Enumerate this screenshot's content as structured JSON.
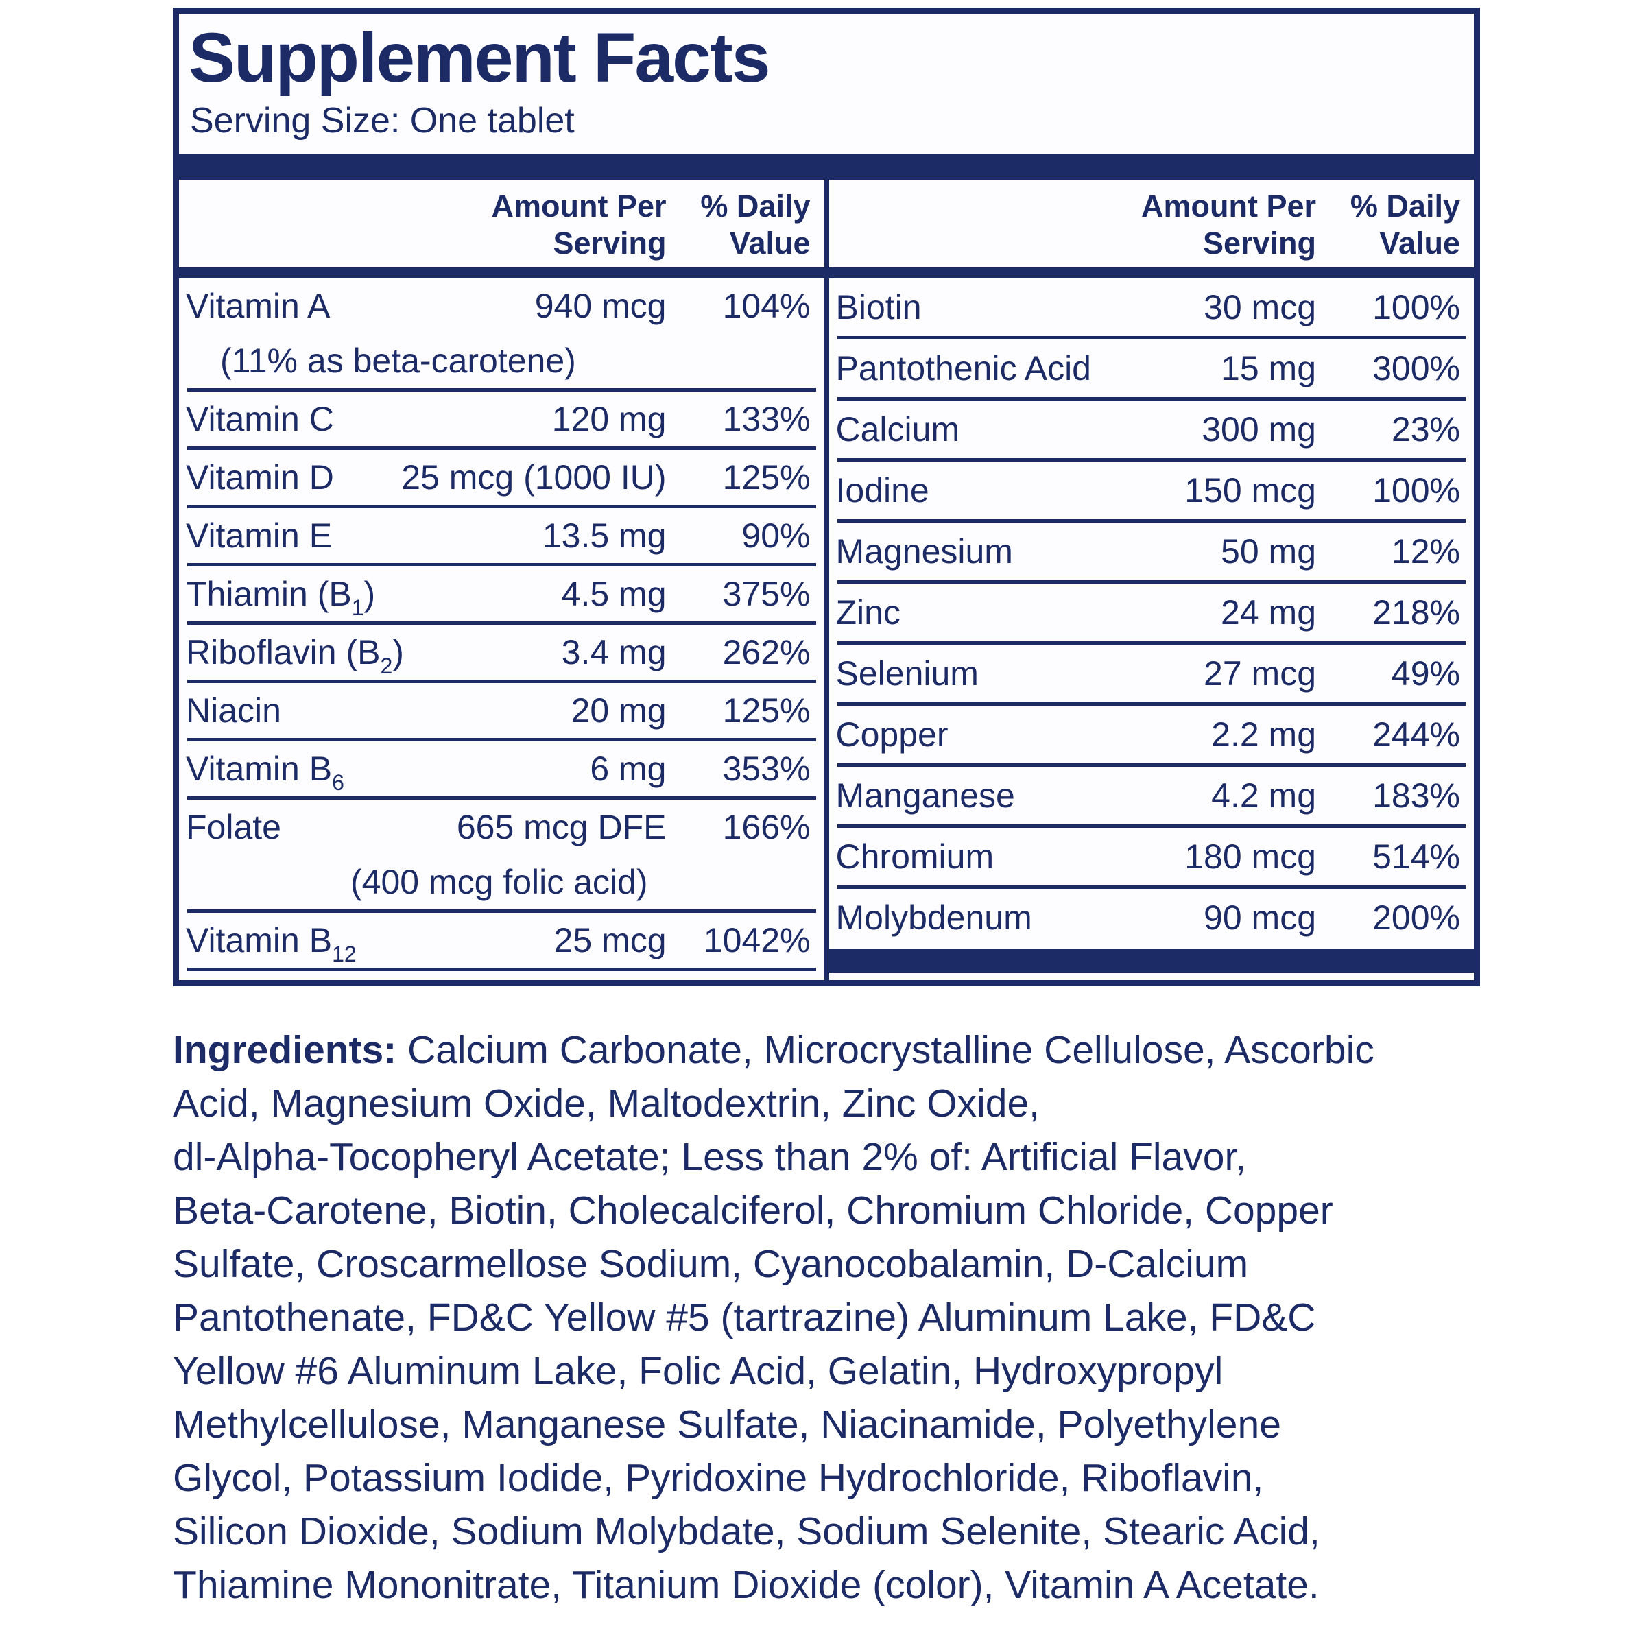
{
  "colors": {
    "navy": "#1c2a66",
    "panel_bg": "#fdfdff",
    "page_bg": "#ffffff"
  },
  "label": {
    "title": "Supplement Facts",
    "serving_size": "Serving Size: One tablet"
  },
  "table": {
    "header": {
      "amount_line1": "Amount Per",
      "amount_line2": "Serving",
      "dv_line1": "% Daily",
      "dv_line2": "Value"
    },
    "left_rows": [
      {
        "name": "Vitamin A",
        "amount": "940 mcg",
        "dv": "104%",
        "note": "(11% as beta-carotene)"
      },
      {
        "name": "Vitamin C",
        "amount": "120 mg",
        "dv": "133%"
      },
      {
        "name": "Vitamin D",
        "amount": "25 mcg (1000 IU)",
        "dv": "125%"
      },
      {
        "name": "Vitamin E",
        "amount": "13.5 mg",
        "dv": "90%"
      },
      {
        "name": "Thiamin (B",
        "sub": "1",
        "name_post": ")",
        "amount": "4.5 mg",
        "dv": "375%"
      },
      {
        "name": "Riboflavin (B",
        "sub": "2",
        "name_post": ")",
        "amount": "3.4 mg",
        "dv": "262%"
      },
      {
        "name": "Niacin",
        "amount": "20 mg",
        "dv": "125%"
      },
      {
        "name": "Vitamin B",
        "sub": "6",
        "name_post": "",
        "amount": "6 mg",
        "dv": "353%"
      },
      {
        "name": "Folate",
        "amount": "665 mcg DFE",
        "dv": "166%",
        "note": "(400 mcg folic acid)"
      },
      {
        "name": "Vitamin B",
        "sub": "12",
        "name_post": "",
        "amount": "25 mcg",
        "dv": "1042%"
      }
    ],
    "right_rows": [
      {
        "name": "Biotin",
        "amount": "30 mcg",
        "dv": "100%"
      },
      {
        "name": "Pantothenic Acid",
        "amount": "15 mg",
        "dv": "300%"
      },
      {
        "name": "Calcium",
        "amount": "300 mg",
        "dv": "23%"
      },
      {
        "name": "Iodine",
        "amount": "150 mcg",
        "dv": "100%"
      },
      {
        "name": "Magnesium",
        "amount": "50 mg",
        "dv": "12%"
      },
      {
        "name": "Zinc",
        "amount": "24 mg",
        "dv": "218%"
      },
      {
        "name": "Selenium",
        "amount": "27 mcg",
        "dv": "49%"
      },
      {
        "name": "Copper",
        "amount": "2.2 mg",
        "dv": "244%"
      },
      {
        "name": "Manganese",
        "amount": "4.2 mg",
        "dv": "183%"
      },
      {
        "name": "Chromium",
        "amount": "180 mcg",
        "dv": "514%"
      },
      {
        "name": "Molybdenum",
        "amount": "90 mcg",
        "dv": "200%"
      }
    ]
  },
  "ingredients": {
    "label": "Ingredients:",
    "text": " Calcium Carbonate, Microcrystalline Cellulose, Ascorbic\nAcid, Magnesium Oxide, Maltodextrin, Zinc Oxide,\ndl-Alpha-Tocopheryl Acetate; Less than 2% of: Artificial Flavor,\nBeta-Carotene, Biotin, Cholecalciferol, Chromium Chloride, Copper\nSulfate, Croscarmellose Sodium, Cyanocobalamin, D-Calcium\nPantothenate, FD&C Yellow #5 (tartrazine) Aluminum Lake, FD&C\nYellow #6 Aluminum Lake, Folic Acid, Gelatin, Hydroxypropyl\nMethylcellulose, Manganese Sulfate, Niacinamide, Polyethylene\nGlycol, Potassium Iodide, Pyridoxine Hydrochloride, Riboflavin,\nSilicon Dioxide, Sodium Molybdate, Sodium Selenite, Stearic Acid,\nThiamine Mononitrate, Titanium Dioxide (color), Vitamin A Acetate."
  }
}
